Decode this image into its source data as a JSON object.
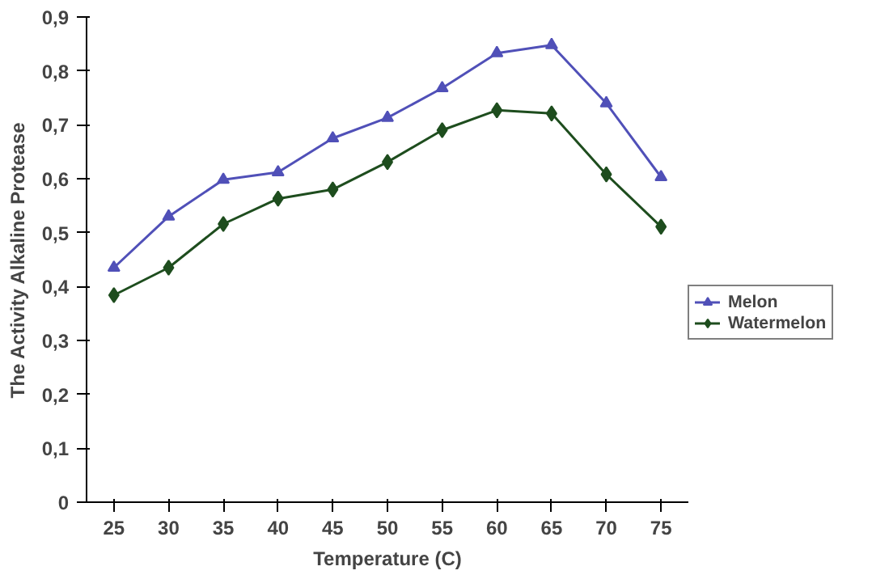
{
  "chart_data": {
    "type": "line",
    "xlabel": "Temperature (C)",
    "ylabel": "The Activity Alkaline Protease",
    "categories": [
      "25",
      "30",
      "35",
      "40",
      "45",
      "50",
      "55",
      "60",
      "65",
      "70",
      "75"
    ],
    "ylim": [
      0,
      0.9
    ],
    "yticks": [
      {
        "value": 0,
        "label": "0"
      },
      {
        "value": 0.1,
        "label": "0,1"
      },
      {
        "value": 0.2,
        "label": "0,2"
      },
      {
        "value": 0.3,
        "label": "0,3"
      },
      {
        "value": 0.4,
        "label": "0,4"
      },
      {
        "value": 0.5,
        "label": "0,5"
      },
      {
        "value": 0.6,
        "label": "0,6"
      },
      {
        "value": 0.7,
        "label": "0,7"
      },
      {
        "value": 0.8,
        "label": "0,8"
      },
      {
        "value": 0.9,
        "label": "0,9"
      }
    ],
    "legend": "right",
    "series": [
      {
        "name": "Melon",
        "color": "#5050b8",
        "marker": "triangle",
        "values": [
          0.435,
          0.53,
          0.598,
          0.612,
          0.675,
          0.713,
          0.768,
          0.833,
          0.848,
          0.74,
          0.603
        ]
      },
      {
        "name": "Watermelon",
        "color": "#1e4d1e",
        "marker": "diamond",
        "values": [
          0.384,
          0.435,
          0.516,
          0.563,
          0.58,
          0.631,
          0.69,
          0.727,
          0.721,
          0.608,
          0.511
        ]
      }
    ]
  }
}
